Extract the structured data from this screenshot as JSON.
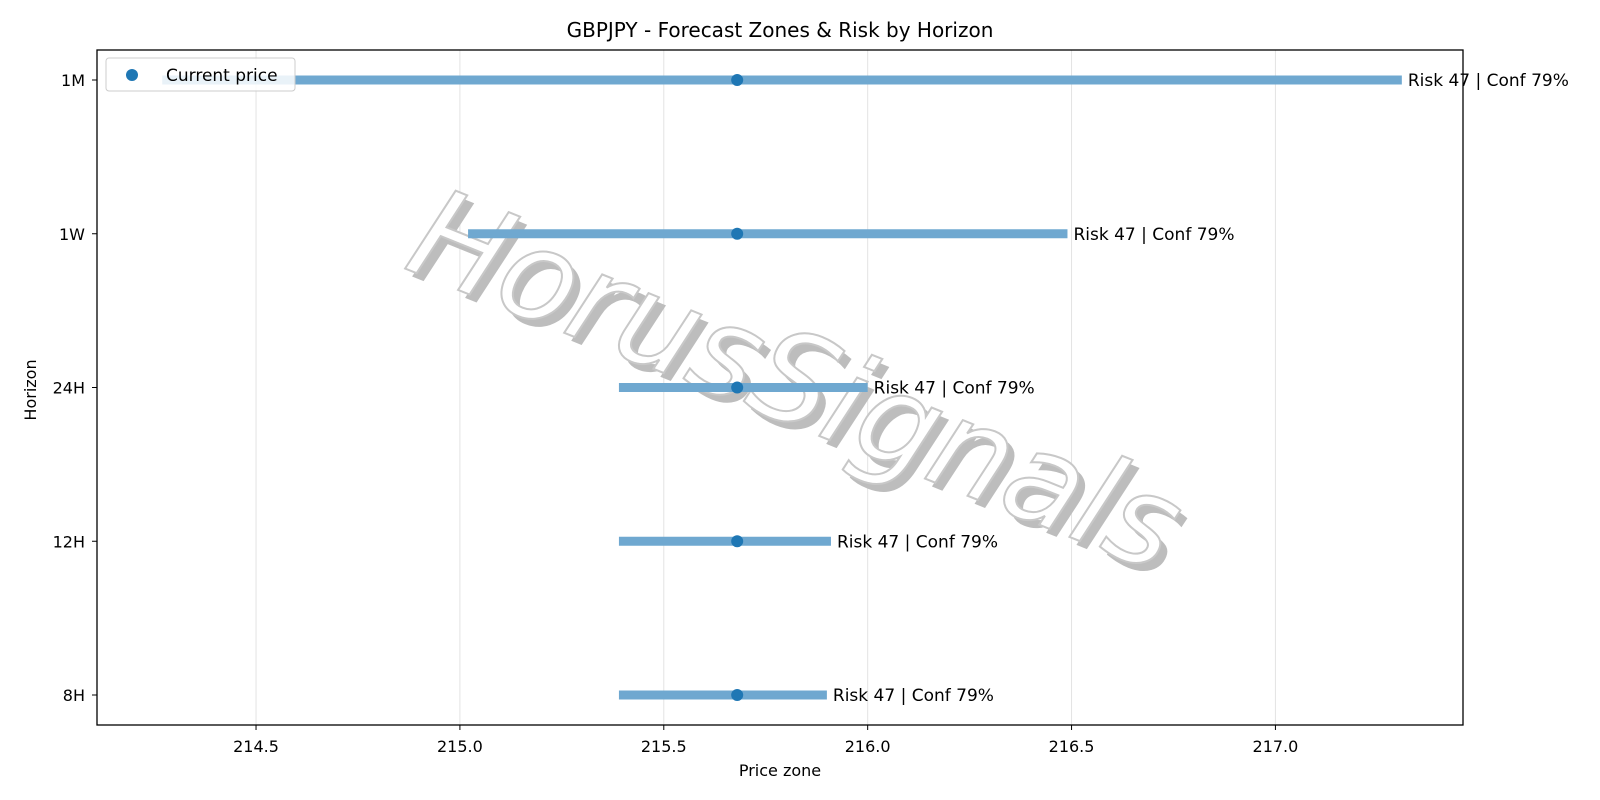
{
  "chart_data": {
    "type": "range",
    "title": "GBPJPY - Forecast Zones & Risk by Horizon",
    "xlabel": "Price zone",
    "ylabel": "Horizon",
    "xlim": [
      214.11,
      217.46
    ],
    "xticks": [
      "214.5",
      "215.0",
      "215.5",
      "216.0",
      "216.5",
      "217.0"
    ],
    "xtick_values": [
      214.5,
      215.0,
      215.5,
      216.0,
      216.5,
      217.0
    ],
    "grid": "vertical",
    "legend": {
      "label": "Current price",
      "position": "top-left"
    },
    "current_price": 215.68,
    "watermark": "HorusSignals",
    "series": [
      {
        "horizon": "1M",
        "low": 214.27,
        "high": 217.31,
        "price": 215.68,
        "annotation": "Risk 47 | Conf 79%"
      },
      {
        "horizon": "1W",
        "low": 215.02,
        "high": 216.49,
        "price": 215.68,
        "annotation": "Risk 47 | Conf 79%"
      },
      {
        "horizon": "24H",
        "low": 215.39,
        "high": 216.0,
        "price": 215.68,
        "annotation": "Risk 47 | Conf 79%"
      },
      {
        "horizon": "12H",
        "low": 215.39,
        "high": 215.91,
        "price": 215.68,
        "annotation": "Risk 47 | Conf 79%"
      },
      {
        "horizon": "8H",
        "low": 215.39,
        "high": 215.9,
        "price": 215.68,
        "annotation": "Risk 47 | Conf 79%"
      }
    ],
    "colors": {
      "bar": "#6fa8d0",
      "point": "#1f77b4",
      "grid": "#e3e3e3",
      "watermark": "#c8c8c8"
    }
  }
}
